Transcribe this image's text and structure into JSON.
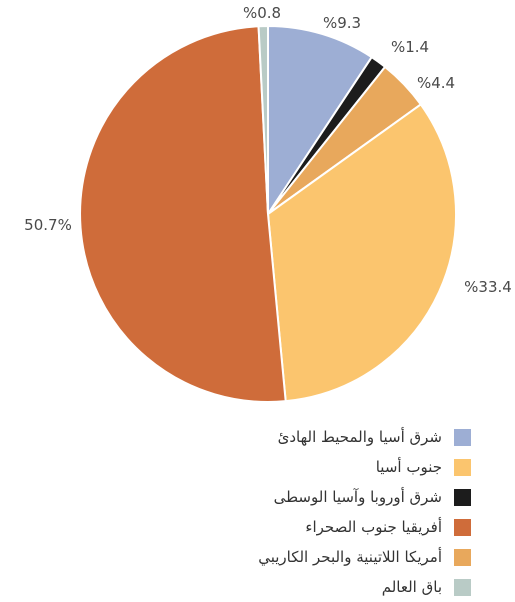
{
  "chart_data": {
    "type": "pie",
    "title": "",
    "slices": [
      {
        "label": "شرق أسيا والمحيط الهادئ",
        "value": 9.3,
        "display": "%9.3",
        "color": "#9daed4"
      },
      {
        "label": "شرق أوروبا وآسيا الوسطى",
        "value": 1.4,
        "display": "%1.4",
        "color": "#1c1c1c"
      },
      {
        "label": "أمريكا اللاتينية والبحر الكاريبي",
        "value": 4.4,
        "display": "%4.4",
        "color": "#e8a85c"
      },
      {
        "label": "جنوب أسيا",
        "value": 33.4,
        "display": "%33.4",
        "color": "#fbc56e"
      },
      {
        "label": "أفريقيا جنوب الصحراء",
        "value": 50.7,
        "display": "50.7%",
        "color": "#cf6c3a"
      },
      {
        "label": "باق العالم",
        "value": 0.8,
        "display": "%0.8",
        "color": "#b9cbc6"
      }
    ],
    "legend": [
      {
        "label": "شرق أسيا والمحيط الهادئ",
        "color": "#9daed4"
      },
      {
        "label": "جنوب أسيا",
        "color": "#fbc56e"
      },
      {
        "label": "شرق أوروبا وآسيا الوسطى",
        "color": "#1c1c1c"
      },
      {
        "label": "أفريقيا جنوب الصحراء",
        "color": "#cf6c3a"
      },
      {
        "label": "أمريكا اللاتينية والبحر الكاريبي",
        "color": "#e8a85c"
      },
      {
        "label": "باق العالم",
        "color": "#b9cbc6"
      }
    ],
    "legend_position": "bottom-right"
  }
}
